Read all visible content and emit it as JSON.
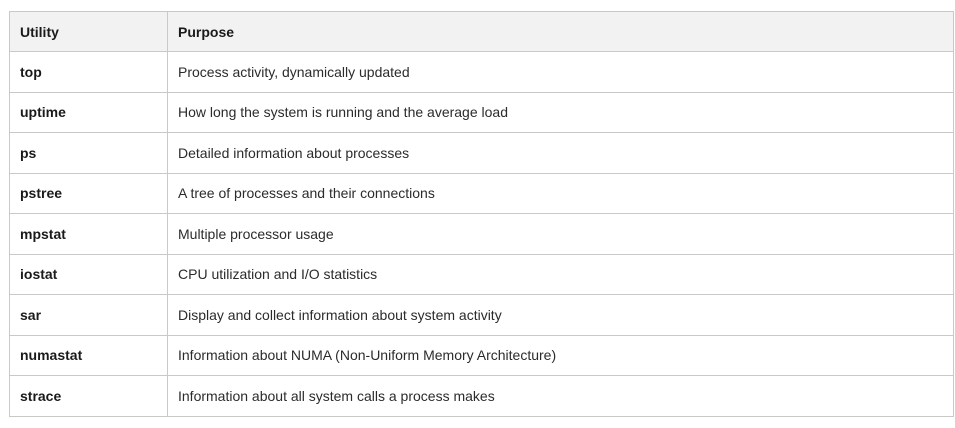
{
  "table": {
    "headers": [
      "Utility",
      "Purpose"
    ],
    "rows": [
      {
        "utility": "top",
        "purpose": "Process activity, dynamically updated"
      },
      {
        "utility": "uptime",
        "purpose": "How long the system is running and the average load"
      },
      {
        "utility": "ps",
        "purpose": "Detailed information about processes"
      },
      {
        "utility": "pstree",
        "purpose": "A tree of processes and their connections"
      },
      {
        "utility": "mpstat",
        "purpose": "Multiple processor usage"
      },
      {
        "utility": "iostat",
        "purpose": "CPU utilization and I/O statistics"
      },
      {
        "utility": "sar",
        "purpose": "Display and collect information about system activity"
      },
      {
        "utility": "numastat",
        "purpose": "Information about NUMA (Non-Uniform Memory Architecture)"
      },
      {
        "utility": "strace",
        "purpose": "Information about all system calls a process makes"
      }
    ]
  }
}
